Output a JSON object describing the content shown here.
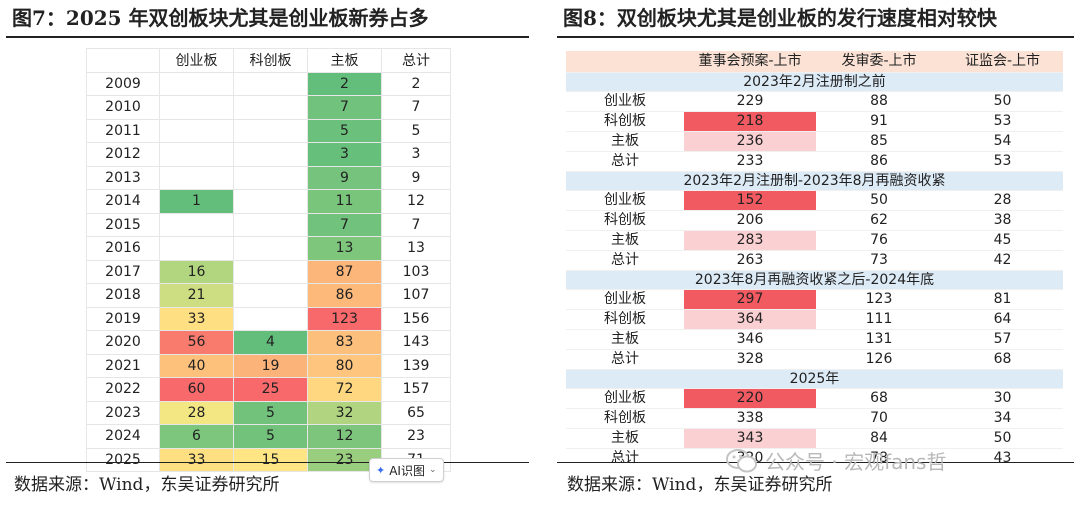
{
  "left": {
    "title": "图7：2025 年双创板块尤其是创业板新券占多",
    "headers": [
      "",
      "创业板",
      "科创板",
      "主板",
      "总计"
    ],
    "rows": [
      {
        "year": "2009",
        "cyb": "",
        "kcb": "",
        "zb": "2",
        "total": "2"
      },
      {
        "year": "2010",
        "cyb": "",
        "kcb": "",
        "zb": "7",
        "total": "7"
      },
      {
        "year": "2011",
        "cyb": "",
        "kcb": "",
        "zb": "5",
        "total": "5"
      },
      {
        "year": "2012",
        "cyb": "",
        "kcb": "",
        "zb": "3",
        "total": "3"
      },
      {
        "year": "2013",
        "cyb": "",
        "kcb": "",
        "zb": "9",
        "total": "9"
      },
      {
        "year": "2014",
        "cyb": "1",
        "kcb": "",
        "zb": "11",
        "total": "12"
      },
      {
        "year": "2015",
        "cyb": "",
        "kcb": "",
        "zb": "7",
        "total": "7"
      },
      {
        "year": "2016",
        "cyb": "",
        "kcb": "",
        "zb": "13",
        "total": "13"
      },
      {
        "year": "2017",
        "cyb": "16",
        "kcb": "",
        "zb": "87",
        "total": "103"
      },
      {
        "year": "2018",
        "cyb": "21",
        "kcb": "",
        "zb": "86",
        "total": "107"
      },
      {
        "year": "2019",
        "cyb": "33",
        "kcb": "",
        "zb": "123",
        "total": "156"
      },
      {
        "year": "2020",
        "cyb": "56",
        "kcb": "4",
        "zb": "83",
        "total": "143"
      },
      {
        "year": "2021",
        "cyb": "40",
        "kcb": "19",
        "zb": "80",
        "total": "139"
      },
      {
        "year": "2022",
        "cyb": "60",
        "kcb": "25",
        "zb": "72",
        "total": "157"
      },
      {
        "year": "2023",
        "cyb": "28",
        "kcb": "5",
        "zb": "32",
        "total": "65"
      },
      {
        "year": "2024",
        "cyb": "6",
        "kcb": "5",
        "zb": "12",
        "total": "23"
      },
      {
        "year": "2025",
        "cyb": "33",
        "kcb": "15",
        "zb": "23",
        "total": "71"
      }
    ],
    "source": "数据来源：Wind，东吴证券研究所"
  },
  "right": {
    "title": "图8：双创板块尤其是创业板的发行速度相对较快",
    "headers": [
      "",
      "董事会预案-上市",
      "发审委-上市",
      "证监会-上市"
    ],
    "sections": [
      {
        "label": "2023年2月注册制之前",
        "rows": [
          {
            "name": "创业板",
            "v1": "229",
            "v2": "88",
            "v3": "50"
          },
          {
            "name": "科创板",
            "v1": "218",
            "v2": "91",
            "v3": "53"
          },
          {
            "name": "主板",
            "v1": "236",
            "v2": "85",
            "v3": "54"
          },
          {
            "name": "总计",
            "v1": "233",
            "v2": "86",
            "v3": "53"
          }
        ]
      },
      {
        "label": "2023年2月注册制-2023年8月再融资收紧",
        "rows": [
          {
            "name": "创业板",
            "v1": "152",
            "v2": "50",
            "v3": "28"
          },
          {
            "name": "科创板",
            "v1": "206",
            "v2": "62",
            "v3": "38"
          },
          {
            "name": "主板",
            "v1": "283",
            "v2": "76",
            "v3": "45"
          },
          {
            "name": "总计",
            "v1": "263",
            "v2": "73",
            "v3": "42"
          }
        ]
      },
      {
        "label": "2023年8月再融资收紧之后-2024年底",
        "rows": [
          {
            "name": "创业板",
            "v1": "297",
            "v2": "123",
            "v3": "81"
          },
          {
            "name": "科创板",
            "v1": "364",
            "v2": "111",
            "v3": "64"
          },
          {
            "name": "主板",
            "v1": "346",
            "v2": "131",
            "v3": "57"
          },
          {
            "name": "总计",
            "v1": "328",
            "v2": "126",
            "v3": "68"
          }
        ]
      },
      {
        "label": "2025年",
        "rows": [
          {
            "name": "创业板",
            "v1": "220",
            "v2": "68",
            "v3": "30"
          },
          {
            "name": "科创板",
            "v1": "338",
            "v2": "70",
            "v3": "34"
          },
          {
            "name": "主板",
            "v1": "343",
            "v2": "84",
            "v3": "50"
          },
          {
            "name": "总计",
            "v1": "320",
            "v2": "78",
            "v3": "43"
          }
        ]
      }
    ],
    "source": "数据来源：Wind，东吴证券研究所"
  },
  "highlight_colors": {
    "right_v1_strong": "#f25a62",
    "right_v1_medium": "#f58d91",
    "right_v1_light": "#fbd0d2",
    "left_scale_low": "#63be7b",
    "left_scale_mid": "#ffeb84",
    "left_scale_high": "#f8696b"
  },
  "overlay": {
    "ai_button_label": "AI识图",
    "ai_icon": "sparkle-icon",
    "watermark_text": "公众号 · 宏观fans哲",
    "watermark_icon": "wechat-icon"
  }
}
